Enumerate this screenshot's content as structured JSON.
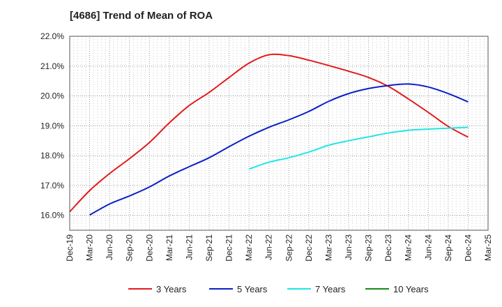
{
  "chart_data": {
    "type": "line",
    "title": "[4686]  Trend of Mean of ROA",
    "xlabel": "",
    "ylabel": "",
    "ylim": [
      15.5,
      22.0
    ],
    "yticks": [
      "16.0%",
      "17.0%",
      "18.0%",
      "19.0%",
      "20.0%",
      "21.0%",
      "22.0%"
    ],
    "ytick_values": [
      16,
      17,
      18,
      19,
      20,
      21,
      22
    ],
    "x_categories": [
      "Dec-19",
      "Mar-20",
      "Jun-20",
      "Sep-20",
      "Dec-20",
      "Mar-21",
      "Jun-21",
      "Sep-21",
      "Dec-21",
      "Mar-22",
      "Jun-22",
      "Sep-22",
      "Dec-22",
      "Mar-23",
      "Jun-23",
      "Sep-23",
      "Dec-23",
      "Mar-24",
      "Jun-24",
      "Sep-24",
      "Dec-24",
      "Mar-25"
    ],
    "grid": true,
    "legend_position": "bottom",
    "series": [
      {
        "name": "3 Years",
        "color": "#e31a1c",
        "values": [
          16.12,
          16.83,
          17.4,
          17.9,
          18.44,
          19.1,
          19.68,
          20.12,
          20.62,
          21.1,
          21.38,
          21.35,
          21.2,
          21.02,
          20.83,
          20.62,
          20.32,
          19.9,
          19.45,
          18.98,
          18.62,
          null
        ]
      },
      {
        "name": "5 Years",
        "color": "#0a1fc8",
        "values": [
          null,
          16.01,
          16.38,
          16.65,
          16.95,
          17.32,
          17.63,
          17.93,
          18.3,
          18.65,
          18.95,
          19.2,
          19.48,
          19.82,
          20.08,
          20.25,
          20.35,
          20.4,
          20.3,
          20.08,
          19.8,
          null
        ]
      },
      {
        "name": "7 Years",
        "color": "#22e5e5",
        "values": [
          null,
          null,
          null,
          null,
          null,
          null,
          null,
          null,
          null,
          17.55,
          17.78,
          17.93,
          18.12,
          18.35,
          18.5,
          18.63,
          18.76,
          18.85,
          18.89,
          18.92,
          18.95,
          null
        ]
      },
      {
        "name": "10 Years",
        "color": "#1a8a1a",
        "values": [
          null,
          null,
          null,
          null,
          null,
          null,
          null,
          null,
          null,
          null,
          null,
          null,
          null,
          null,
          null,
          null,
          null,
          null,
          null,
          null,
          null,
          null
        ]
      }
    ]
  }
}
